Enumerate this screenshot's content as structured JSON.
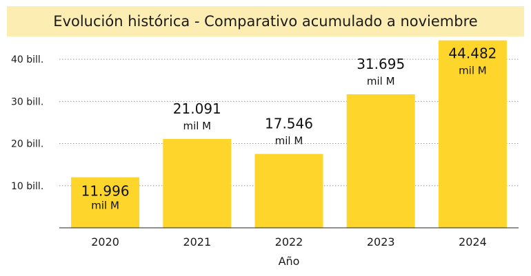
{
  "chart_data": {
    "type": "bar",
    "title": "Evolución histórica - Comparativo acumulado a noviembre",
    "xlabel": "Año",
    "ylabel": "",
    "categories": [
      "2020",
      "2021",
      "2022",
      "2023",
      "2024"
    ],
    "values": [
      11.996,
      21.091,
      17.546,
      31.695,
      44.482
    ],
    "value_labels": [
      "11.996",
      "21.091",
      "17.546",
      "31.695",
      "44.482"
    ],
    "unit_label": "mil M",
    "yticks": [
      {
        "value": 10,
        "label": "10 bill."
      },
      {
        "value": 20,
        "label": "20 bill."
      },
      {
        "value": 30,
        "label": "30 bill."
      },
      {
        "value": 40,
        "label": "40 bill."
      }
    ],
    "ylim": [
      0,
      45.9
    ],
    "grid": true,
    "colors": {
      "bar": "#fdd52b",
      "grid": "#9a9a9a",
      "title_bg": "#fcedb2"
    }
  }
}
